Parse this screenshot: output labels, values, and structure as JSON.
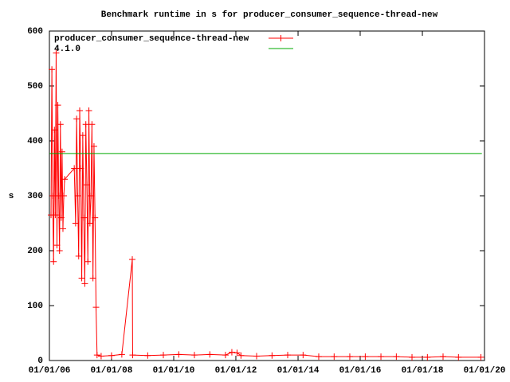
{
  "chart_data": {
    "type": "line",
    "title": "Benchmark runtime in s for producer_consumer_sequence-thread-new",
    "y_label": "s",
    "xlim": [
      "2006-01-01",
      "2020-01-01"
    ],
    "xticks": [
      {
        "value": "2006-01-01",
        "label": "01/01/06"
      },
      {
        "value": "2008-01-01",
        "label": "01/01/08"
      },
      {
        "value": "2010-01-01",
        "label": "01/01/10"
      },
      {
        "value": "2012-01-01",
        "label": "01/01/12"
      },
      {
        "value": "2014-01-01",
        "label": "01/01/14"
      },
      {
        "value": "2016-01-01",
        "label": "01/01/16"
      },
      {
        "value": "2018-01-01",
        "label": "01/01/18"
      },
      {
        "value": "2020-01-01",
        "label": "01/01/20"
      }
    ],
    "ylim": [
      0,
      600
    ],
    "yticks": [
      0,
      100,
      200,
      300,
      400,
      500,
      600
    ],
    "grid": false,
    "legend": "top-left",
    "series": [
      {
        "name": "producer_consumer_sequence-thread-new",
        "color": "#ff0000",
        "marker": "cross",
        "x": [
          "2006-01-20",
          "2006-01-30",
          "2006-02-09",
          "2006-02-19",
          "2006-03-01",
          "2006-03-11",
          "2006-03-21",
          "2006-03-31",
          "2006-04-10",
          "2006-04-20",
          "2006-04-30",
          "2006-05-10",
          "2006-05-20",
          "2006-05-30",
          "2006-06-09",
          "2006-06-19",
          "2006-06-29",
          "2006-10-20",
          "2006-11-05",
          "2006-11-17",
          "2006-11-29",
          "2006-12-11",
          "2006-12-23",
          "2007-01-04",
          "2007-01-16",
          "2007-01-28",
          "2007-02-09",
          "2007-02-21",
          "2007-03-05",
          "2007-03-17",
          "2007-03-29",
          "2007-04-10",
          "2007-04-22",
          "2007-05-04",
          "2007-05-16",
          "2007-05-28",
          "2007-06-09",
          "2007-06-21",
          "2007-07-03",
          "2007-07-15",
          "2007-09-01",
          "2008-01-01",
          "2008-05-01",
          "2008-09-01",
          "2008-09-05",
          "2009-03-01",
          "2009-09-01",
          "2010-03-01",
          "2010-09-01",
          "2011-03-01",
          "2011-09-01",
          "2011-11-15",
          "2012-01-15",
          "2012-03-01",
          "2012-09-01",
          "2013-03-01",
          "2013-09-01",
          "2014-03-01",
          "2014-09-01",
          "2015-03-01",
          "2015-09-01",
          "2016-03-01",
          "2016-09-01",
          "2017-03-01",
          "2017-09-01",
          "2018-03-01",
          "2018-09-01",
          "2019-03-01",
          "2019-11-20"
        ],
        "values": [
          265,
          530,
          300,
          180,
          420,
          265,
          560,
          210,
          465,
          300,
          200,
          430,
          260,
          380,
          240,
          300,
          330,
          350,
          250,
          440,
          300,
          190,
          455,
          350,
          150,
          410,
          260,
          140,
          430,
          320,
          180,
          455,
          250,
          300,
          430,
          150,
          390,
          260,
          97,
          10,
          8,
          9,
          11,
          184,
          10,
          9,
          10,
          11,
          10,
          11,
          10,
          15,
          14,
          9,
          8,
          9,
          10,
          10,
          7,
          7,
          7,
          7,
          7,
          7,
          6,
          6,
          7,
          6,
          6
        ]
      },
      {
        "name": "4.1.0",
        "color": "#00aa00",
        "marker": "none",
        "x": [
          "2006-01-01",
          "2019-12-01"
        ],
        "values": [
          377,
          377
        ]
      }
    ]
  }
}
